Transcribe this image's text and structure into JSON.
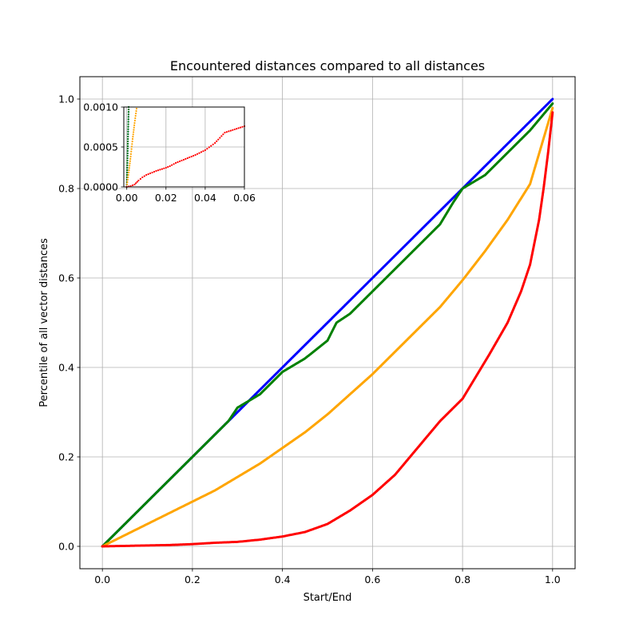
{
  "chart_data": [
    {
      "type": "scatter",
      "title": "Encountered distances compared to all distances",
      "xlabel": "Start/End",
      "ylabel": "Percentile of all vector distances",
      "xlim": [
        -0.05,
        1.05
      ],
      "ylim": [
        -0.05,
        1.05
      ],
      "x_ticks": [
        "0.0",
        "0.2",
        "0.4",
        "0.6",
        "0.8",
        "1.0"
      ],
      "y_ticks": [
        "0.0",
        "0.2",
        "0.4",
        "0.6",
        "0.8",
        "1.0"
      ],
      "grid": true,
      "legend": "none",
      "series": [
        {
          "color": "#0000ff",
          "x": [
            0,
            0.1,
            0.2,
            0.3,
            0.4,
            0.5,
            0.6,
            0.7,
            0.8,
            0.9,
            1.0
          ],
          "y": [
            0,
            0.1,
            0.2,
            0.3,
            0.4,
            0.5,
            0.6,
            0.7,
            0.8,
            0.9,
            1.0
          ]
        },
        {
          "color": "#008000",
          "x": [
            0,
            0.03,
            0.06,
            0.1,
            0.15,
            0.2,
            0.23,
            0.25,
            0.28,
            0.3,
            0.35,
            0.4,
            0.45,
            0.5,
            0.52,
            0.55,
            0.6,
            0.65,
            0.7,
            0.75,
            0.78,
            0.8,
            0.85,
            0.9,
            0.95,
            1.0
          ],
          "y": [
            0,
            0.03,
            0.06,
            0.1,
            0.15,
            0.2,
            0.23,
            0.25,
            0.28,
            0.31,
            0.34,
            0.39,
            0.42,
            0.46,
            0.5,
            0.52,
            0.57,
            0.62,
            0.67,
            0.72,
            0.77,
            0.8,
            0.83,
            0.88,
            0.93,
            0.99
          ]
        },
        {
          "color": "#ffa500",
          "x": [
            0,
            0.05,
            0.1,
            0.15,
            0.2,
            0.25,
            0.3,
            0.35,
            0.4,
            0.45,
            0.5,
            0.55,
            0.6,
            0.65,
            0.7,
            0.75,
            0.8,
            0.85,
            0.9,
            0.95,
            1.0
          ],
          "y": [
            0,
            0.025,
            0.05,
            0.075,
            0.1,
            0.125,
            0.155,
            0.185,
            0.22,
            0.255,
            0.295,
            0.34,
            0.385,
            0.435,
            0.485,
            0.535,
            0.595,
            0.66,
            0.73,
            0.81,
            0.98
          ]
        },
        {
          "color": "#ff0000",
          "x": [
            0,
            0.05,
            0.1,
            0.15,
            0.2,
            0.25,
            0.3,
            0.35,
            0.4,
            0.45,
            0.5,
            0.55,
            0.6,
            0.65,
            0.7,
            0.75,
            0.8,
            0.83,
            0.86,
            0.9,
            0.93,
            0.95,
            0.97,
            0.98,
            0.99,
            1.0
          ],
          "y": [
            0,
            0.001,
            0.002,
            0.003,
            0.005,
            0.008,
            0.01,
            0.015,
            0.022,
            0.032,
            0.05,
            0.08,
            0.115,
            0.16,
            0.22,
            0.28,
            0.33,
            0.38,
            0.43,
            0.5,
            0.57,
            0.63,
            0.73,
            0.8,
            0.88,
            0.97
          ]
        }
      ]
    },
    {
      "type": "scatter",
      "title": "",
      "xlim": [
        -0.0015,
        0.06
      ],
      "ylim": [
        0,
        0.001
      ],
      "x_ticks": [
        "0.00",
        "0.02",
        "0.04",
        "0.06"
      ],
      "y_ticks": [
        "0.0000",
        "0.0005",
        "0.0010"
      ],
      "grid": true,
      "legend": "none",
      "series": [
        {
          "color": "#0000ff",
          "x": [
            0.0,
            0.0003,
            0.0006,
            0.001
          ],
          "y": [
            0.0,
            0.0003,
            0.0006,
            0.001
          ]
        },
        {
          "color": "#008000",
          "x": [
            0.0,
            0.0003,
            0.0006,
            0.001
          ],
          "y": [
            0.0,
            0.0003,
            0.0006,
            0.001
          ]
        },
        {
          "color": "#ffa500",
          "x": [
            0.0,
            0.001,
            0.002,
            0.003,
            0.004,
            0.005
          ],
          "y": [
            0.0,
            0.00018,
            0.00038,
            0.0006,
            0.0008,
            0.00098
          ]
        },
        {
          "color": "#ff0000",
          "x": [
            0.0,
            0.002,
            0.004,
            0.006,
            0.008,
            0.01,
            0.012,
            0.015,
            0.02,
            0.022,
            0.025,
            0.03,
            0.035,
            0.04,
            0.045,
            0.05,
            0.055,
            0.06
          ],
          "y": [
            0.0,
            1e-05,
            3e-05,
            8e-05,
            0.00012,
            0.00015,
            0.00017,
            0.0002,
            0.00024,
            0.00026,
            0.0003,
            0.00035,
            0.0004,
            0.00046,
            0.00055,
            0.00068,
            0.00072,
            0.00076
          ]
        }
      ]
    }
  ]
}
